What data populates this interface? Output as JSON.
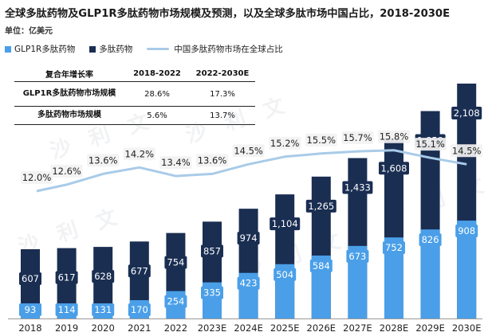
{
  "header": {
    "title": "全球多肽药物及GLP1R多肽药物市场规模及预测，以及全球多肽市场中国占比，2018-2030E",
    "unit": "单位：亿美元"
  },
  "legend": {
    "glp1": "GLP1R多肽药物",
    "peptide": "多肽药物",
    "share": "中国多肽药物市场在全球占比"
  },
  "cagr_table": {
    "header": [
      "复合年增长率",
      "2018-2022",
      "2022-2030E"
    ],
    "rows": [
      {
        "label": "GLP1R多肽药物市场规模",
        "v1": "28.6%",
        "v2": "17.3%"
      },
      {
        "label": "多肽药物市场规模",
        "v1": "5.6%",
        "v2": "13.7%"
      }
    ]
  },
  "watermark": "沙 利 文",
  "colors": {
    "glp1": "#4a9fe8",
    "peptide": "#1a2e52",
    "share_line": "#a9cbe8",
    "share_label_bg": "#f2f2f2"
  },
  "chart_data": {
    "type": "bar",
    "categories": [
      "2018",
      "2019",
      "2020",
      "2021",
      "2022",
      "2023E",
      "2024E",
      "2025E",
      "2026E",
      "2027E",
      "2028E",
      "2029E",
      "2030E"
    ],
    "series": [
      {
        "name": "GLP1R多肽药物",
        "values": [
          93,
          114,
          131,
          170,
          254,
          335,
          423,
          504,
          584,
          673,
          752,
          826,
          908
        ]
      },
      {
        "name": "多肽药物",
        "values": [
          607,
          617,
          628,
          677,
          754,
          857,
          974,
          1104,
          1265,
          1433,
          1608,
          1859,
          2108
        ]
      },
      {
        "name": "中国多肽药物市场在全球占比",
        "type": "line",
        "values": [
          12.0,
          12.6,
          13.6,
          14.2,
          13.4,
          13.6,
          14.5,
          15.2,
          15.5,
          15.7,
          15.8,
          15.1,
          14.5
        ],
        "labels": [
          "12.0%",
          "12.6%",
          "13.6%",
          "14.2%",
          "13.4%",
          "13.6%",
          "14.5%",
          "15.2%",
          "15.5%",
          "15.7%",
          "15.8%",
          "15.1%",
          "14.5%"
        ]
      }
    ]
  }
}
